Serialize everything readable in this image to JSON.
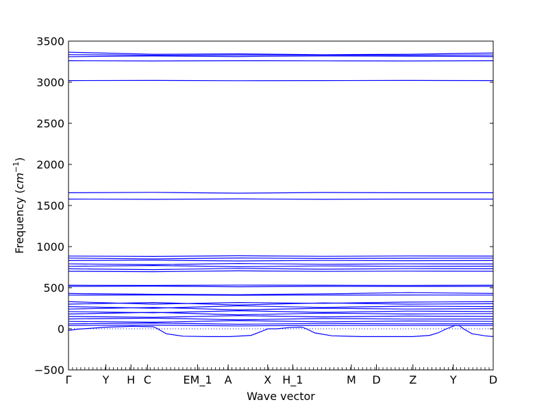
{
  "chart_data": {
    "type": "line",
    "xlabel": "Wave vector",
    "ylabel_prefix": "Frequency (",
    "ylabel_unit_base": "cm",
    "ylabel_unit_exp": "−1",
    "ylabel_suffix": ")",
    "ylim": [
      -500,
      3500
    ],
    "yticks": [
      -500,
      0,
      500,
      1000,
      1500,
      2000,
      2500,
      3000,
      3500
    ],
    "xlim": [
      0,
      1
    ],
    "xticks": [
      {
        "label": "Γ",
        "x": 0.0
      },
      {
        "label": "Y",
        "x": 0.088
      },
      {
        "label": "H",
        "x": 0.147
      },
      {
        "label": "C",
        "x": 0.186
      },
      {
        "label": "EM_1",
        "x": 0.304
      },
      {
        "label": "A",
        "x": 0.376
      },
      {
        "label": "X",
        "x": 0.469
      },
      {
        "label": "H_1",
        "x": 0.528
      },
      {
        "label": "M",
        "x": 0.666
      },
      {
        "label": "D",
        "x": 0.725
      },
      {
        "label": "Z",
        "x": 0.811
      },
      {
        "label": "Y",
        "x": 0.906
      },
      {
        "label": "D",
        "x": 1.0
      }
    ],
    "zero_line": 0,
    "line_color": "#0000ff",
    "series": [
      {
        "values_x": [
          0,
          0.2,
          0.4,
          0.6,
          0.8,
          1
        ],
        "values_y": [
          3365,
          3340,
          3345,
          3335,
          3340,
          3355
        ]
      },
      {
        "values_x": [
          0,
          0.2,
          0.4,
          0.6,
          0.8,
          1
        ],
        "values_y": [
          3335,
          3328,
          3330,
          3332,
          3328,
          3330
        ]
      },
      {
        "values_x": [
          0,
          0.2,
          0.4,
          0.6,
          0.8,
          1
        ],
        "values_y": [
          3310,
          3318,
          3312,
          3320,
          3315,
          3312
        ]
      },
      {
        "values_x": [
          0,
          0.2,
          0.4,
          0.6,
          0.8,
          1
        ],
        "values_y": [
          3262,
          3258,
          3262,
          3260,
          3258,
          3262
        ]
      },
      {
        "values_x": [
          0,
          0.2,
          0.4,
          0.6,
          0.8,
          1
        ],
        "values_y": [
          3020,
          3022,
          3018,
          3020,
          3022,
          3020
        ]
      },
      {
        "values_x": [
          0,
          0.2,
          0.4,
          0.6,
          0.8,
          1
        ],
        "values_y": [
          1655,
          1660,
          1650,
          1658,
          1655,
          1655
        ]
      },
      {
        "values_x": [
          0,
          0.2,
          0.4,
          0.6,
          0.8,
          1
        ],
        "values_y": [
          1578,
          1575,
          1580,
          1575,
          1578,
          1578
        ]
      },
      {
        "values_x": [
          0,
          0.2,
          0.4,
          0.6,
          0.8,
          1
        ],
        "values_y": [
          885,
          880,
          888,
          882,
          886,
          884
        ]
      },
      {
        "values_x": [
          0,
          0.2,
          0.4,
          0.6,
          0.8,
          1
        ],
        "values_y": [
          860,
          850,
          862,
          855,
          858,
          860
        ]
      },
      {
        "values_x": [
          0,
          0.2,
          0.4,
          0.6,
          0.8,
          1
        ],
        "values_y": [
          830,
          835,
          825,
          832,
          828,
          830
        ]
      },
      {
        "values_x": [
          0,
          0.2,
          0.4,
          0.6,
          0.8,
          1
        ],
        "values_y": [
          790,
          780,
          795,
          785,
          790,
          788
        ]
      },
      {
        "values_x": [
          0,
          0.2,
          0.4,
          0.6,
          0.8,
          1
        ],
        "values_y": [
          760,
          770,
          755,
          765,
          760,
          762
        ]
      },
      {
        "values_x": [
          0,
          0.2,
          0.4,
          0.6,
          0.8,
          1
        ],
        "values_y": [
          730,
          720,
          735,
          725,
          732,
          730
        ]
      },
      {
        "values_x": [
          0,
          0.2,
          0.4,
          0.6,
          0.8,
          1
        ],
        "values_y": [
          700,
          695,
          705,
          698,
          702,
          700
        ]
      },
      {
        "values_x": [
          0,
          0.2,
          0.4,
          0.6,
          0.8,
          1
        ],
        "values_y": [
          530,
          528,
          532,
          530,
          528,
          530
        ]
      },
      {
        "values_x": [
          0,
          0.2,
          0.4,
          0.6,
          0.8,
          1
        ],
        "values_y": [
          515,
          518,
          512,
          516,
          514,
          515
        ]
      },
      {
        "values_x": [
          0,
          0.2,
          0.4,
          0.6,
          0.8,
          1
        ],
        "values_y": [
          430,
          420,
          415,
          425,
          440,
          430
        ]
      },
      {
        "values_x": [
          0,
          0.2,
          0.4,
          0.6,
          0.8,
          1
        ],
        "values_y": [
          410,
          412,
          408,
          410,
          412,
          410
        ]
      },
      {
        "values_x": [
          0,
          0.2,
          0.4,
          0.6,
          0.8,
          1
        ],
        "values_y": [
          330,
          300,
          320,
          310,
          325,
          330
        ]
      },
      {
        "values_x": [
          0,
          0.2,
          0.4,
          0.6,
          0.8,
          1
        ],
        "values_y": [
          300,
          320,
          290,
          315,
          300,
          305
        ]
      },
      {
        "values_x": [
          0,
          0.2,
          0.4,
          0.6,
          0.8,
          1
        ],
        "values_y": [
          270,
          250,
          280,
          260,
          275,
          270
        ]
      },
      {
        "values_x": [
          0,
          0.2,
          0.4,
          0.6,
          0.8,
          1
        ],
        "values_y": [
          240,
          260,
          230,
          250,
          240,
          245
        ]
      },
      {
        "values_x": [
          0,
          0.2,
          0.4,
          0.6,
          0.8,
          1
        ],
        "values_y": [
          210,
          195,
          220,
          200,
          215,
          210
        ]
      },
      {
        "values_x": [
          0,
          0.2,
          0.4,
          0.6,
          0.8,
          1
        ],
        "values_y": [
          180,
          200,
          170,
          190,
          180,
          185
        ]
      },
      {
        "values_x": [
          0,
          0.2,
          0.4,
          0.6,
          0.8,
          1
        ],
        "values_y": [
          150,
          140,
          160,
          145,
          155,
          150
        ]
      },
      {
        "values_x": [
          0,
          0.2,
          0.4,
          0.6,
          0.8,
          1
        ],
        "values_y": [
          120,
          130,
          110,
          125,
          118,
          120
        ]
      },
      {
        "values_x": [
          0,
          0.2,
          0.4,
          0.6,
          0.8,
          1
        ],
        "values_y": [
          90,
          80,
          100,
          85,
          95,
          90
        ]
      },
      {
        "values_x": [
          0,
          0.2,
          0.4,
          0.6,
          0.8,
          1
        ],
        "values_y": [
          60,
          70,
          55,
          65,
          60,
          62
        ]
      },
      {
        "values_x": [
          0,
          0.2,
          0.4,
          0.6,
          0.8,
          1
        ],
        "values_y": [
          40,
          45,
          35,
          42,
          40,
          40
        ]
      },
      {
        "values_x": [
          0,
          0.02,
          0.09,
          0.15,
          0.2,
          0.21,
          0.23,
          0.27,
          0.33,
          0.38,
          0.43,
          0.45,
          0.47,
          0.49,
          0.52,
          0.55,
          0.56,
          0.58,
          0.62,
          0.69,
          0.75,
          0.81,
          0.85,
          0.87,
          0.89,
          0.91,
          0.92,
          0.93,
          0.95,
          0.98,
          1.0
        ],
        "values_y": [
          -20,
          -5,
          20,
          30,
          25,
          0,
          -60,
          -90,
          -95,
          -95,
          -80,
          -40,
          0,
          0,
          15,
          20,
          0,
          -50,
          -85,
          -95,
          -95,
          -95,
          -80,
          -50,
          0,
          40,
          40,
          0,
          -60,
          -85,
          -95
        ]
      }
    ]
  }
}
